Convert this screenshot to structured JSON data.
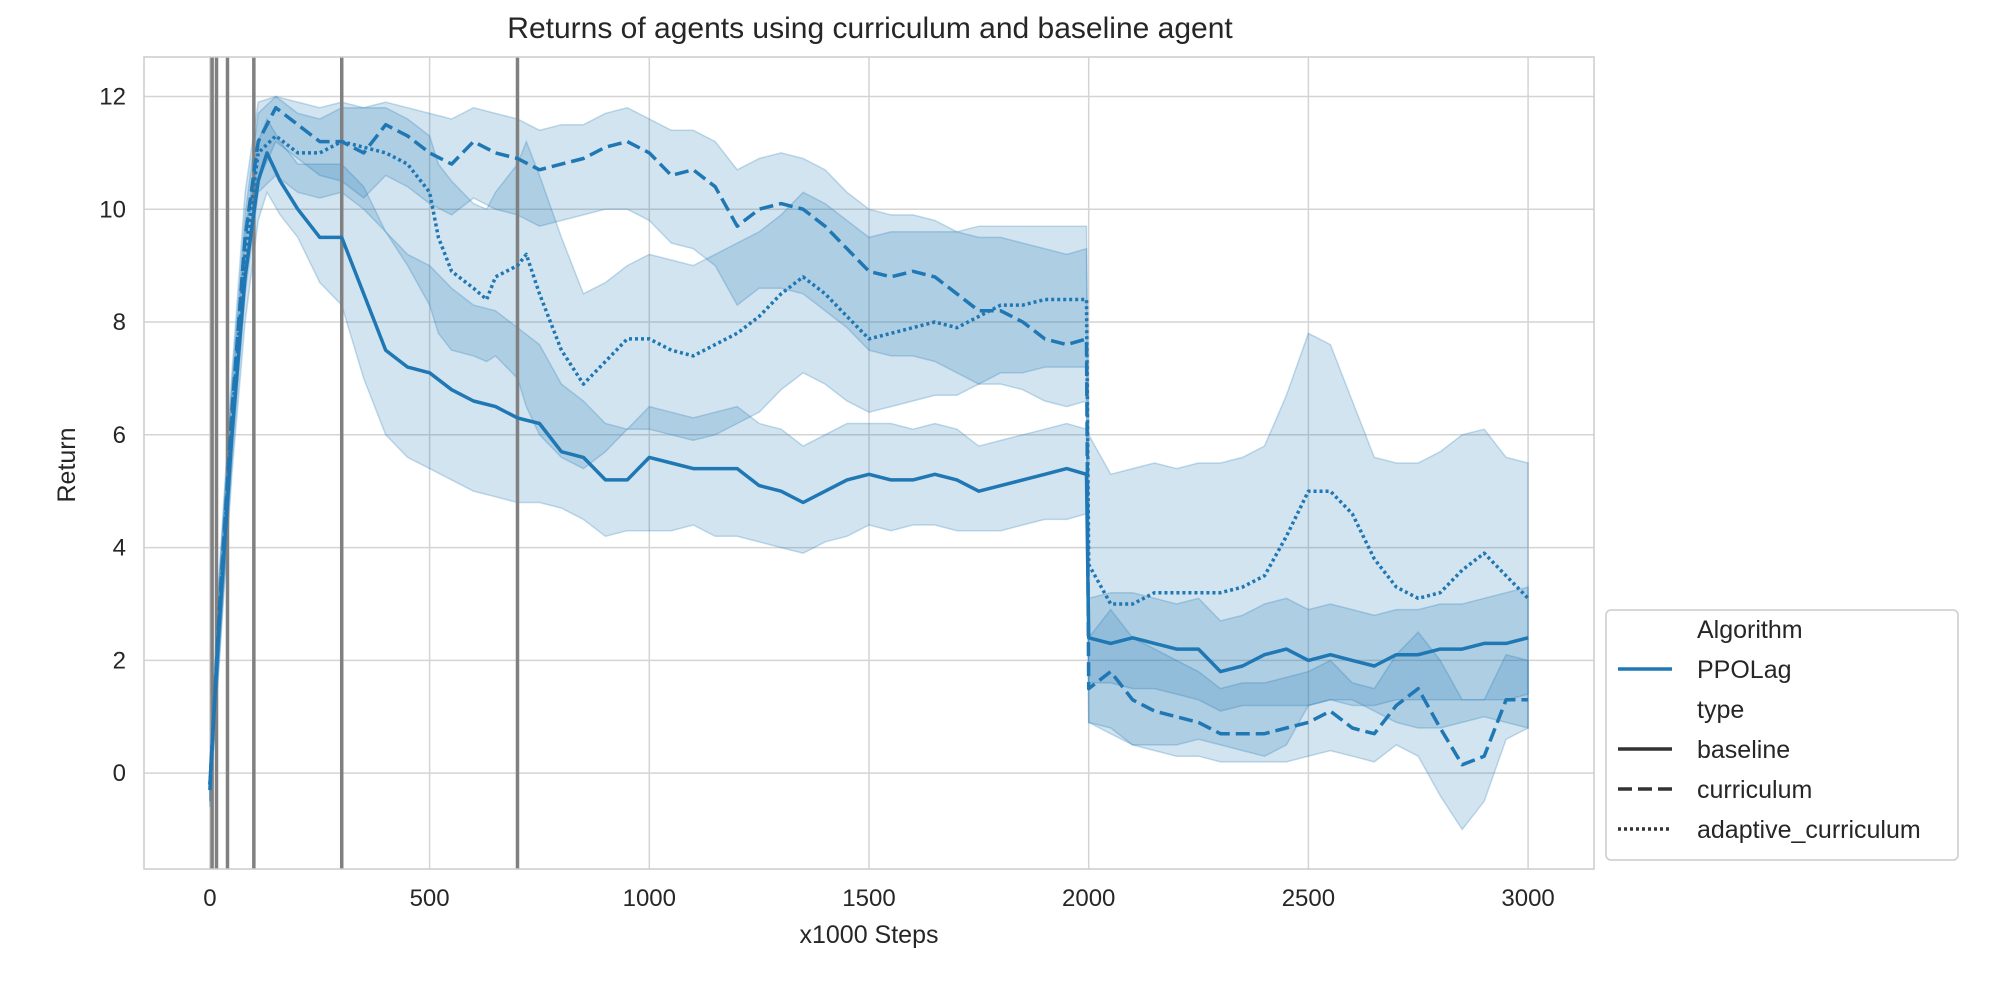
{
  "chart_data": {
    "type": "line",
    "title": "Returns of agents using curriculum and baseline agent",
    "xlabel": "x1000 Steps",
    "ylabel": "Return",
    "xlim": [
      -150,
      3150
    ],
    "ylim": [
      -1.7,
      12.7
    ],
    "xticks": [
      0,
      500,
      1000,
      1500,
      2000,
      2500,
      3000
    ],
    "yticks": [
      0,
      2,
      4,
      6,
      8,
      10,
      12
    ],
    "grid": true,
    "vlines": [
      5,
      15,
      40,
      100,
      300,
      700
    ],
    "legend": {
      "placement": "lower-right-outside",
      "entries": [
        {
          "kind": "header",
          "label": "Algorithm"
        },
        {
          "kind": "line",
          "label": "PPOLag",
          "style": "solid",
          "color": "#1f77b4"
        },
        {
          "kind": "header",
          "label": "type"
        },
        {
          "kind": "line",
          "label": "baseline",
          "style": "solid",
          "color": "#333333"
        },
        {
          "kind": "line",
          "label": "curriculum",
          "style": "dashed",
          "color": "#333333"
        },
        {
          "kind": "line",
          "label": "adaptive_curriculum",
          "style": "dotted",
          "color": "#333333"
        }
      ]
    },
    "colors": {
      "series": "#1f77b4",
      "band": "#1f77b4",
      "vline": "#808080",
      "grid": "#d4d4d4"
    },
    "series": [
      {
        "name": "baseline",
        "algorithm": "PPOLag",
        "style": "solid",
        "x": [
          0,
          20,
          50,
          80,
          110,
          130,
          160,
          200,
          250,
          300,
          350,
          400,
          450,
          500,
          550,
          600,
          650,
          700,
          750,
          800,
          850,
          900,
          950,
          1000,
          1050,
          1100,
          1150,
          1200,
          1250,
          1300,
          1350,
          1400,
          1450,
          1500,
          1550,
          1600,
          1650,
          1700,
          1750,
          1800,
          1850,
          1900,
          1950,
          1995,
          2000,
          2050,
          2100,
          2150,
          2200,
          2250,
          2300,
          2350,
          2400,
          2450,
          2500,
          2550,
          2600,
          2650,
          2700,
          2750,
          2800,
          2850,
          2900,
          2950,
          3000
        ],
        "y": [
          -0.2,
          2.5,
          6.0,
          8.8,
          10.5,
          11.0,
          10.5,
          10.0,
          9.5,
          9.5,
          8.5,
          7.5,
          7.2,
          7.1,
          6.8,
          6.6,
          6.5,
          6.3,
          6.2,
          5.7,
          5.6,
          5.2,
          5.2,
          5.6,
          5.5,
          5.4,
          5.4,
          5.4,
          5.1,
          5.0,
          4.8,
          5.0,
          5.2,
          5.3,
          5.2,
          5.2,
          5.3,
          5.2,
          5.0,
          5.1,
          5.2,
          5.3,
          5.4,
          5.3,
          2.4,
          2.3,
          2.4,
          2.3,
          2.2,
          2.2,
          1.8,
          1.9,
          2.1,
          2.2,
          2.0,
          2.1,
          2.0,
          1.9,
          2.1,
          2.1,
          2.2,
          2.2,
          2.3,
          2.3,
          2.4
        ],
        "lo": [
          -0.5,
          1.8,
          5.3,
          8.0,
          9.8,
          10.3,
          9.9,
          9.5,
          8.7,
          8.3,
          7.0,
          6.0,
          5.6,
          5.4,
          5.2,
          5.0,
          4.9,
          4.8,
          4.8,
          4.7,
          4.5,
          4.2,
          4.3,
          4.3,
          4.3,
          4.4,
          4.2,
          4.2,
          4.1,
          4.0,
          3.9,
          4.1,
          4.2,
          4.4,
          4.3,
          4.4,
          4.4,
          4.3,
          4.3,
          4.3,
          4.4,
          4.5,
          4.5,
          4.6,
          1.6,
          1.6,
          1.5,
          1.5,
          1.4,
          1.3,
          1.1,
          1.2,
          1.2,
          1.2,
          1.2,
          1.3,
          1.2,
          1.2,
          1.3,
          1.3,
          1.3,
          1.3,
          1.3,
          1.3,
          1.4
        ],
        "hi": [
          0.1,
          3.2,
          6.7,
          9.6,
          11.2,
          11.6,
          11.2,
          10.8,
          10.8,
          10.8,
          10.4,
          9.6,
          9.2,
          9.0,
          8.6,
          8.3,
          8.2,
          7.9,
          7.6,
          6.9,
          6.6,
          6.2,
          6.1,
          6.5,
          6.4,
          6.3,
          6.4,
          6.5,
          6.2,
          6.1,
          5.8,
          6.0,
          6.2,
          6.2,
          6.2,
          6.1,
          6.2,
          6.1,
          5.8,
          5.9,
          6.0,
          6.1,
          6.2,
          6.1,
          3.1,
          3.2,
          3.2,
          3.1,
          3.0,
          3.1,
          2.7,
          2.8,
          3.0,
          3.1,
          2.9,
          3.0,
          2.9,
          2.8,
          2.9,
          2.9,
          3.0,
          3.0,
          3.1,
          3.2,
          3.3
        ]
      },
      {
        "name": "curriculum",
        "algorithm": "PPOLag",
        "style": "dashed",
        "x": [
          0,
          20,
          50,
          80,
          110,
          150,
          200,
          250,
          300,
          350,
          400,
          450,
          500,
          550,
          600,
          650,
          700,
          750,
          800,
          850,
          900,
          950,
          1000,
          1050,
          1100,
          1150,
          1200,
          1250,
          1300,
          1350,
          1400,
          1450,
          1500,
          1550,
          1600,
          1650,
          1700,
          1750,
          1800,
          1850,
          1900,
          1950,
          1995,
          2000,
          2050,
          2100,
          2150,
          2200,
          2250,
          2300,
          2350,
          2400,
          2450,
          2500,
          2550,
          2600,
          2650,
          2700,
          2750,
          2800,
          2850,
          2900,
          2950,
          3000
        ],
        "y": [
          -0.3,
          2.7,
          6.4,
          9.5,
          11.2,
          11.8,
          11.5,
          11.2,
          11.2,
          11.0,
          11.5,
          11.3,
          11.0,
          10.8,
          11.2,
          11.0,
          10.9,
          10.7,
          10.8,
          10.9,
          11.1,
          11.2,
          11.0,
          10.6,
          10.7,
          10.4,
          9.7,
          10.0,
          10.1,
          10.0,
          9.7,
          9.3,
          8.9,
          8.8,
          8.9,
          8.8,
          8.5,
          8.2,
          8.2,
          8.0,
          7.7,
          7.6,
          7.7,
          1.5,
          1.8,
          1.3,
          1.1,
          1.0,
          0.9,
          0.7,
          0.7,
          0.7,
          0.8,
          0.9,
          1.1,
          0.8,
          0.7,
          1.2,
          1.5,
          0.8,
          0.15,
          0.3,
          1.3,
          1.3
        ],
        "lo": [
          -0.6,
          2.0,
          5.7,
          8.7,
          10.5,
          11.2,
          10.9,
          10.6,
          10.5,
          10.2,
          10.6,
          10.4,
          10.1,
          9.9,
          10.2,
          10.0,
          9.9,
          9.7,
          9.8,
          9.9,
          10.0,
          10.0,
          9.8,
          9.4,
          9.3,
          9.0,
          8.3,
          8.6,
          8.6,
          8.5,
          8.2,
          7.9,
          7.5,
          7.4,
          7.4,
          7.3,
          7.1,
          6.9,
          6.9,
          6.8,
          6.6,
          6.5,
          6.6,
          0.9,
          0.8,
          0.5,
          0.4,
          0.3,
          0.3,
          0.2,
          0.2,
          0.2,
          0.2,
          0.3,
          0.4,
          0.3,
          0.2,
          0.5,
          0.3,
          -0.4,
          -1.0,
          -0.5,
          0.6,
          0.8
        ],
        "hi": [
          0.0,
          3.4,
          7.1,
          10.3,
          11.9,
          12.0,
          11.9,
          11.8,
          11.9,
          11.8,
          11.9,
          11.8,
          11.7,
          11.6,
          11.8,
          11.7,
          11.6,
          11.4,
          11.5,
          11.5,
          11.7,
          11.8,
          11.6,
          11.4,
          11.4,
          11.2,
          10.7,
          10.9,
          11.0,
          10.9,
          10.7,
          10.3,
          10.0,
          9.9,
          9.9,
          9.8,
          9.6,
          9.5,
          9.5,
          9.4,
          9.3,
          9.2,
          9.3,
          2.4,
          2.9,
          2.4,
          2.2,
          2.0,
          1.8,
          1.5,
          1.6,
          1.6,
          1.7,
          1.8,
          2.0,
          1.6,
          1.5,
          2.1,
          2.5,
          2.0,
          1.3,
          1.3,
          2.1,
          2.0
        ]
      },
      {
        "name": "adaptive_curriculum",
        "algorithm": "PPOLag",
        "style": "dotted",
        "x": [
          0,
          20,
          50,
          80,
          110,
          150,
          200,
          250,
          300,
          350,
          400,
          450,
          500,
          520,
          550,
          600,
          630,
          650,
          700,
          720,
          750,
          800,
          850,
          900,
          950,
          1000,
          1050,
          1100,
          1150,
          1200,
          1250,
          1300,
          1350,
          1400,
          1450,
          1500,
          1550,
          1600,
          1650,
          1700,
          1750,
          1800,
          1850,
          1900,
          1950,
          1995,
          2000,
          2050,
          2100,
          2150,
          2200,
          2250,
          2300,
          2350,
          2400,
          2450,
          2500,
          2550,
          2600,
          2650,
          2700,
          2750,
          2800,
          2850,
          2900,
          2950,
          3000
        ],
        "y": [
          -0.2,
          2.6,
          6.2,
          9.2,
          11.0,
          11.3,
          11.0,
          11.0,
          11.2,
          11.1,
          11.0,
          10.8,
          10.3,
          9.5,
          8.9,
          8.6,
          8.4,
          8.8,
          9.0,
          9.2,
          8.5,
          7.5,
          6.9,
          7.3,
          7.7,
          7.7,
          7.5,
          7.4,
          7.6,
          7.8,
          8.1,
          8.5,
          8.8,
          8.5,
          8.1,
          7.7,
          7.8,
          7.9,
          8.0,
          7.9,
          8.1,
          8.3,
          8.3,
          8.4,
          8.4,
          8.4,
          3.7,
          3.0,
          3.0,
          3.2,
          3.2,
          3.2,
          3.2,
          3.3,
          3.5,
          4.2,
          5.0,
          5.0,
          4.6,
          3.8,
          3.3,
          3.1,
          3.2,
          3.6,
          3.9,
          3.5,
          3.1
        ],
        "lo": [
          -0.5,
          1.9,
          5.5,
          8.5,
          10.3,
          10.6,
          10.3,
          10.2,
          10.3,
          10.0,
          9.6,
          9.0,
          8.3,
          7.8,
          7.5,
          7.4,
          7.3,
          7.4,
          7.0,
          6.5,
          6.0,
          5.6,
          5.4,
          5.7,
          6.1,
          6.1,
          6.0,
          5.9,
          6.0,
          6.2,
          6.4,
          6.8,
          7.1,
          6.9,
          6.6,
          6.4,
          6.5,
          6.6,
          6.7,
          6.7,
          6.9,
          7.1,
          7.1,
          7.2,
          7.2,
          7.2,
          0.9,
          0.7,
          0.5,
          0.5,
          0.5,
          0.6,
          0.5,
          0.4,
          0.3,
          0.5,
          1.2,
          1.3,
          1.3,
          1.1,
          0.9,
          0.8,
          0.8,
          0.9,
          1.0,
          0.9,
          0.8
        ],
        "hi": [
          0.1,
          3.3,
          6.9,
          9.9,
          11.7,
          12.0,
          11.7,
          11.6,
          11.8,
          11.8,
          11.8,
          11.6,
          11.3,
          10.8,
          10.5,
          10.1,
          10.0,
          10.3,
          10.8,
          11.2,
          10.6,
          9.5,
          8.5,
          8.7,
          9.0,
          9.2,
          9.1,
          9.0,
          9.2,
          9.4,
          9.6,
          9.9,
          10.3,
          10.1,
          9.8,
          9.5,
          9.6,
          9.6,
          9.6,
          9.6,
          9.7,
          9.7,
          9.7,
          9.7,
          9.7,
          9.7,
          6.0,
          5.3,
          5.4,
          5.5,
          5.4,
          5.5,
          5.5,
          5.6,
          5.8,
          6.7,
          7.8,
          7.6,
          6.6,
          5.6,
          5.5,
          5.5,
          5.7,
          6.0,
          6.1,
          5.6,
          5.5
        ]
      }
    ]
  }
}
